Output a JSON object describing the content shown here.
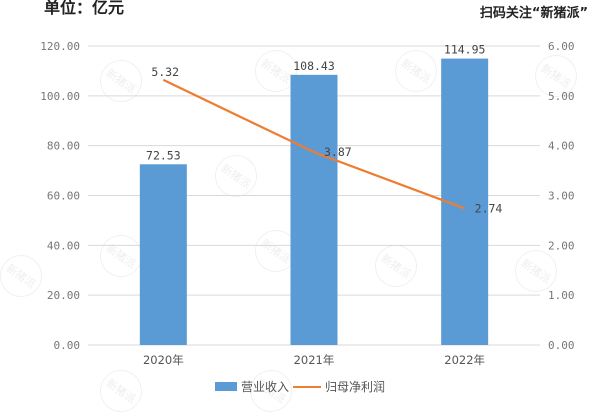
{
  "header": {
    "unit_label": "单位：亿元",
    "follow_label": "扫码关注“新猪派”"
  },
  "watermark": {
    "text": "新猪派"
  },
  "colors": {
    "bar": "#5b9bd5",
    "line": "#ed7d31",
    "grid": "#d9d9d9"
  },
  "chart_data": {
    "type": "bar",
    "title": "",
    "categories": [
      "2020年",
      "2021年",
      "2022年"
    ],
    "series": [
      {
        "name": "营业收入",
        "type": "bar",
        "axis": "left",
        "values": [
          72.53,
          108.43,
          114.95
        ]
      },
      {
        "name": "归母净利润",
        "type": "line",
        "axis": "right",
        "values": [
          5.32,
          3.87,
          2.74
        ]
      }
    ],
    "left_axis": {
      "ylim": [
        0,
        120
      ],
      "ticks": [
        "0.00",
        "20.00",
        "40.00",
        "60.00",
        "80.00",
        "100.00",
        "120.00"
      ]
    },
    "right_axis": {
      "ylim": [
        0,
        6
      ],
      "ticks": [
        "0.00",
        "1.00",
        "2.00",
        "3.00",
        "4.00",
        "5.00",
        "6.00"
      ]
    },
    "data_labels": {
      "bar": [
        "72.53",
        "108.43",
        "114.95"
      ],
      "line": [
        "5.32",
        "3.87",
        "2.74"
      ]
    },
    "grid": true,
    "legend_position": "bottom",
    "unit": "亿元"
  },
  "legend": {
    "items": [
      {
        "label": "营业收入"
      },
      {
        "label": "归母净利润"
      }
    ]
  }
}
